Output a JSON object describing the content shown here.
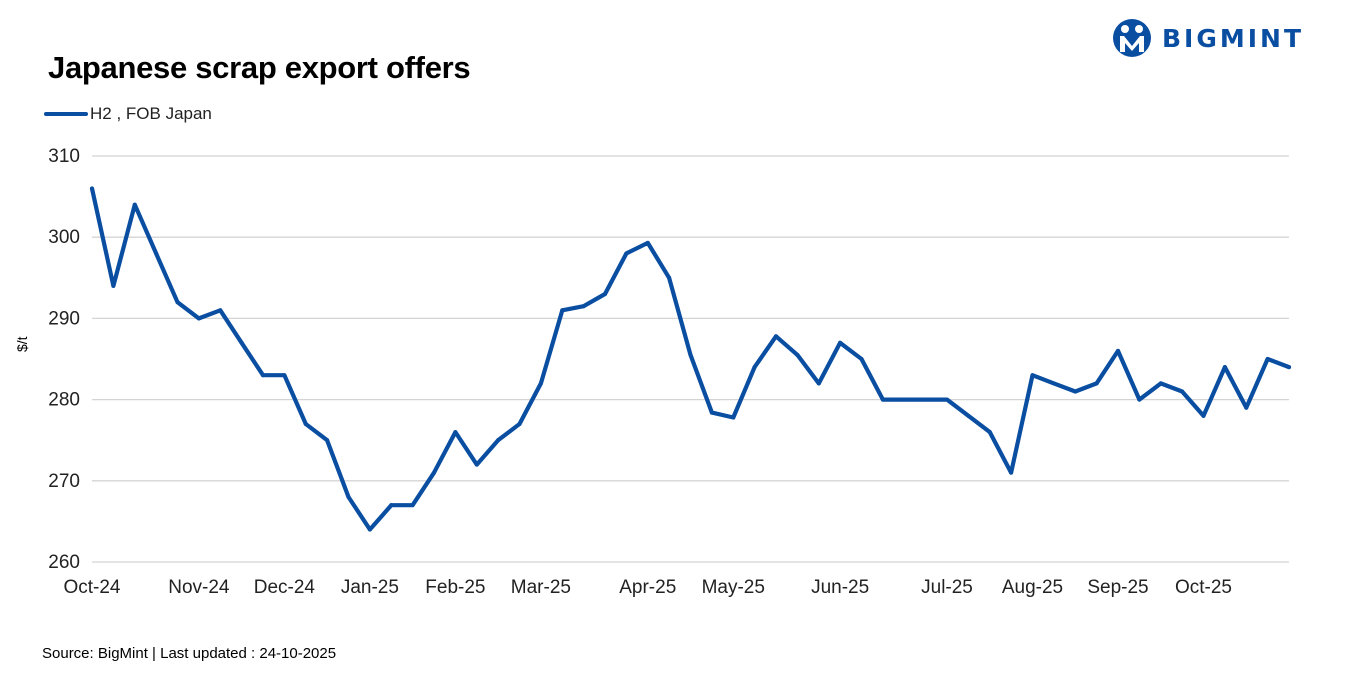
{
  "logo": {
    "text": "BIGMINT",
    "icon": "bigmint-logo-icon",
    "color": "#0a4ea2"
  },
  "title": "Japanese scrap export offers",
  "footer": {
    "source": "Source: BigMint  | Last updated : 24-10-2025"
  },
  "chart_data": {
    "type": "line",
    "title": "Japanese scrap export offers",
    "xlabel": "",
    "ylabel": "$/t",
    "ylim": [
      260,
      310
    ],
    "yticks": [
      260,
      270,
      280,
      290,
      300,
      310
    ],
    "grid": true,
    "legend_position": "top-left",
    "x_tick_labels": [
      "Oct-24",
      "Nov-24",
      "Dec-24",
      "Jan-25",
      "Feb-25",
      "Mar-25",
      "Apr-25",
      "May-25",
      "Jun-25",
      "Jul-25",
      "Aug-25",
      "Sep-25",
      "Oct-25"
    ],
    "x_tick_positions": [
      0,
      5,
      9,
      13,
      17,
      21,
      26,
      30,
      35,
      40,
      44,
      48,
      52
    ],
    "series": [
      {
        "name": "H2 , FOB Japan",
        "color": "#0a4ea2",
        "values": [
          306,
          294,
          304,
          298,
          292,
          290,
          291,
          287,
          283,
          283,
          277,
          275,
          268,
          264,
          267,
          267,
          271,
          276,
          272,
          275,
          277,
          282,
          291,
          291.5,
          293,
          298,
          299.3,
          295,
          285.5,
          278.4,
          277.8,
          284,
          287.8,
          285.5,
          282,
          287,
          285,
          280,
          280,
          280,
          280,
          278,
          276,
          271,
          283,
          282,
          281,
          282,
          286,
          280,
          282,
          281,
          278,
          284,
          279,
          285,
          284
        ]
      }
    ]
  }
}
